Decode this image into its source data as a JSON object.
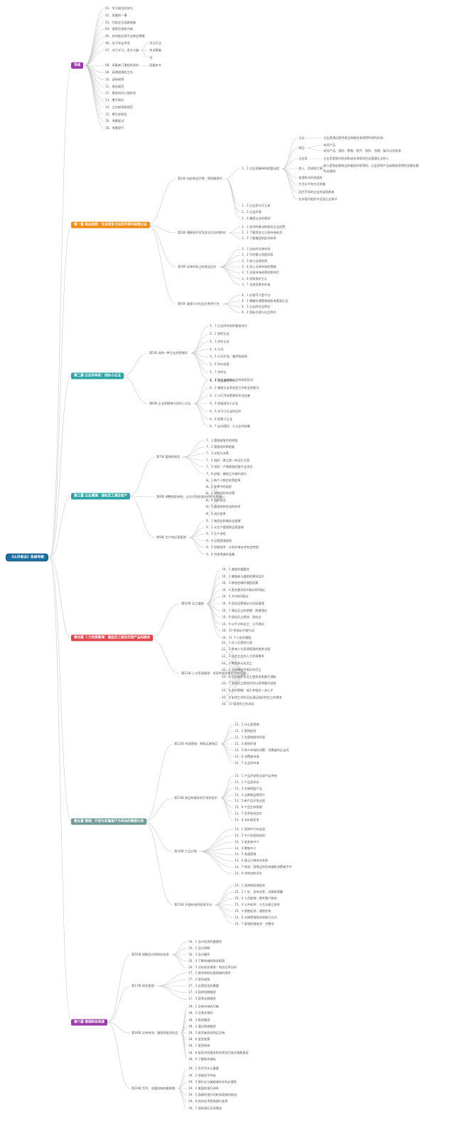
{
  "root": "《认识商业》思维导图",
  "colors": {
    "purple": "#9b3aa8",
    "orange": "#f28c10",
    "teal": "#2aa3a3",
    "red": "#e0464c",
    "gray_teal": "#6f9a98",
    "edge": "#c8c8c8"
  },
  "parts": [
    {
      "id": "intro",
      "title": "导读",
      "color": "purple",
      "items": [
        {
          "label": "01、学习成功的技巧"
        },
        {
          "label": "02、发掘的一课"
        },
        {
          "label": "03、为职业生涯做准备"
        },
        {
          "label": "04、搜索信息和大纲"
        },
        {
          "label": "05、综合能运用专业商业策略"
        },
        {
          "label": "06、学习专业术语"
        },
        {
          "label": "07、对于学习，多方兴趣",
          "children": [
            {
              "label": "学习方法"
            },
            {
              "label": "考试策略"
            },
            {
              "label": "试"
            }
          ]
        },
        {
          "label": "08、采集本门课程的资料",
          "children": [
            {
              "label": "采集本书"
            }
          ]
        },
        {
          "label": "09、获得理想的工作"
        },
        {
          "label": "10、读新闻等"
        },
        {
          "label": "11、报告规范"
        },
        {
          "label": "12、服务良好心理状态"
        },
        {
          "label": "13、撰写简历"
        },
        {
          "label": "14、工作收获和规范"
        },
        {
          "label": "15、撰写求职信"
        },
        {
          "label": "16、准备面试"
        },
        {
          "label": "18、准备辞行"
        }
      ]
    },
    {
      "id": "p1",
      "title": "第一篇 商业趋势：在全球多元化的环境中经营企业",
      "color": "orange",
      "chapters": [
        {
          "label": "第1章 动态商业环境：简把握获利",
          "items": [
            {
              "label": "1、1 企业家精神和财富创造",
              "children": [
                {
                  "label": "企业",
                  "children": [
                    {
                      "label": "企业是通过提供商品和服务来获得利润的实体"
                    }
                  ]
                },
                {
                  "label": "商品",
                  "children": [
                    {
                      "label": "有形产品"
                    },
                    {
                      "label": "无形产品：服务、教育、医疗、保险、金融、娱乐以及旅游"
                    }
                  ]
                },
                {
                  "label": "企业家",
                  "children": [
                    {
                      "label": "企业家是指为利润和成长承担风险去管理企业的人"
                    }
                  ]
                },
                {
                  "label": "收入、利润和亏损",
                  "children": [
                    {
                      "label": "收入是指出售商品和服务所获得的，企业获得产品或服务获得的金额总额"
                    },
                    {
                      "label": "利润透明"
                    }
                  ]
                },
                {
                  "label": "私营和非利润组织"
                },
                {
                  "label": "生活水平和生活质量"
                },
                {
                  "label": "回应不同的企业利益相关者"
                },
                {
                  "label": "在非盈利组织中运用企业知识"
                }
              ]
            },
            {
              "label": "1、2 企业家与打工者"
            },
            {
              "label": "1、3 企业环境"
            },
            {
              "label": "1、4 美国企业的演进"
            }
          ]
        },
        {
          "label": "第2章 理解经济学及其对企业的影响",
          "items": [
            {
              "label": "2、1 经济的推动和驱动企业经营"
            },
            {
              "label": "2、2 了解资本主义和市场经济"
            },
            {
              "label": "2、3 了解美国的经济体系"
            }
          ]
        },
        {
          "label": "第3章 全球市场上的商业运作",
          "items": [
            {
              "label": "3、1 动态的全球市场"
            },
            {
              "label": "3、2 为何要与他国交易"
            },
            {
              "label": "3、3 参与全球贸易"
            },
            {
              "label": "3、4 进入全球市场的策略"
            },
            {
              "label": "3、5 全球市场经营的影响力"
            },
            {
              "label": "3、6 贸易保护主义"
            },
            {
              "label": "3、7 全球贸易的未来"
            }
          ]
        },
        {
          "label": "第4章 道德与对社会负责的行为",
          "items": [
            {
              "label": "4、1 伦理不只是守法"
            },
            {
              "label": "4、2 掌握伦理管理指标来提高企业"
            },
            {
              "label": "4、3 企业的社会责任"
            },
            {
              "label": "4、4 国际伦理与社会责任"
            }
          ]
        }
      ]
    },
    {
      "id": "p2",
      "title": "第二篇 企业所有权：创办小企业",
      "color": "teal",
      "chapters": [
        {
          "label": "第5章 选择一种企业经营模式",
          "items": [
            {
              "label": "5、1 企业所有权的基本形式"
            },
            {
              "label": "5、2 独资企业"
            },
            {
              "label": "5、3 合伙企业"
            },
            {
              "label": "5、4 公司"
            },
            {
              "label": "5、5 公司扩张：兼并和收购"
            },
            {
              "label": "5、6 特许经营"
            },
            {
              "label": "5、7 合作社"
            },
            {
              "label": "5、8 你适合哪种企业所有权形式"
            }
          ]
        },
        {
          "label": "第6章 企业家精神与创办小企业",
          "items": [
            {
              "label": "6、1 创业者的时代"
            },
            {
              "label": "6、2 美国企业家创造工作机会的能力"
            },
            {
              "label": "6、3 人们为何愿意担任创业者"
            },
            {
              "label": "6、4 发展创办小企业"
            },
            {
              "label": "6、5 学习小企业的运作"
            },
            {
              "label": "6、6 经营小企业"
            },
            {
              "label": "6、7 走向国际：小企业的前景"
            }
          ]
        }
      ]
    },
    {
      "id": "p3",
      "title": "第三篇 企业管理：授权员工满足客户",
      "color": "teal",
      "chapters": [
        {
          "label": "第7章 管理和领导",
          "items": [
            {
              "label": "7、1 管理者角色的改变"
            },
            {
              "label": "7、2 管理的四种职能"
            },
            {
              "label": "7、3 计划与决策"
            },
            {
              "label": "7、4 组织：建立统一的运行方案"
            },
            {
              "label": "7、5 领导：严格管理而要专业领导"
            },
            {
              "label": "7、6 控制：确保工作顺利进行"
            }
          ]
        },
        {
          "label": "第8章 调整组织结构，以应对急剧变化的商业挑战",
          "items": [
            {
              "label": "8、1 每个人都会经营变革"
            },
            {
              "label": "8、2 变革中的组织"
            },
            {
              "label": "8、3 调和组织的决策"
            },
            {
              "label": "8、4 组织类型"
            },
            {
              "label": "8、5 管理两种交流和关系"
            },
            {
              "label": "8、6 适应变革"
            }
          ]
        },
        {
          "label": "第9章 生产和运营管理",
          "items": [
            {
              "label": "9、1 制造业和服务业展望"
            },
            {
              "label": "9、2 从生产管理到运营管理"
            },
            {
              "label": "9、3 生产流程"
            },
            {
              "label": "9、4 运营管理规划"
            },
            {
              "label": "9、5 控制程序：计划评审技术和甘特图"
            },
            {
              "label": "9、6 为效率做好准备"
            }
          ]
        }
      ]
    },
    {
      "id": "p4",
      "title": "第四篇 人力资源管理：激励员工提供优质产品和服务",
      "color": "red",
      "chapters": [
        {
          "label": "第10章 员工激励",
          "items": [
            {
              "label": "10、1 激励的重要性"
            },
            {
              "label": "10、2 激励者与激励的需求层次"
            },
            {
              "label": "10、3 赫兹伯格的激励因素"
            },
            {
              "label": "10、4 麦克雷戈的X理论和Y理论"
            },
            {
              "label": "10、5 大内的Z理论"
            },
            {
              "label": "10、6 目标设置理论与目标管理"
            },
            {
              "label": "10、7 满足员工的期望：期望理论"
            },
            {
              "label": "10、8 强化员工绩效：强化论"
            },
            {
              "label": "10、9 公平对待员工：公平理论"
            },
            {
              "label": "10、10 将理论付诸行动"
            },
            {
              "label": "10、11 个人化的激励"
            }
          ]
        },
        {
          "label": "第11章 人力资源管理：发现并留住最优秀的员工",
          "items": [
            {
              "label": "11、1 在人员规划方面"
            },
            {
              "label": "11、2 影响人力资源管理的相关法规"
            },
            {
              "label": "11、3 决定企业的人力资源需求"
            },
            {
              "label": "11、4 聘用多元化员工"
            },
            {
              "label": "11、5 选拔最适合岗位的员工"
            },
            {
              "label": "11、6 培训和开发员工使其发挥最大潜能"
            },
            {
              "label": "11、7 采用员工绩效评估以获得最大成效"
            },
            {
              "label": "11、8 支付薪酬：吸引并留住一流人才"
            },
            {
              "label": "11、9 安排工作时间以满足组织和员工的需求"
            },
            {
              "label": "11、10 管理员工的流动"
            }
          ]
        }
      ]
    },
    {
      "id": "p5",
      "title": "第五篇 营销：开发与实施客户为导向的营销计划",
      "color": "gray_teal",
      "chapters": [
        {
          "label": "第12章 市场营销：帮助买者购买",
          "items": [
            {
              "label": "12、1 什么是营销"
            },
            {
              "label": "12、2 营销组合"
            },
            {
              "label": "12、3 为营销提供环境"
            },
            {
              "label": "12、4 营销环境"
            },
            {
              "label": "12、5 两个市场的消费：消费者和企业间"
            },
            {
              "label": "12、6 消费者市场"
            },
            {
              "label": "12、7 企业间市场"
            }
          ]
        },
        {
          "label": "第13章 商品和服务的开发和定价",
          "items": [
            {
              "label": "13、1 产品开发和全部产品供给"
            },
            {
              "label": "13、2 产品差异化"
            },
            {
              "label": "13、3 包装改变产品"
            },
            {
              "label": "13、4 品牌和品牌资产"
            },
            {
              "label": "13、5 新产品开发过程"
            },
            {
              "label": "13、6 产品生命周期"
            },
            {
              "label": "13、7 竞争性的定价"
            },
            {
              "label": "13、8 非价格竞争"
            }
          ]
        },
        {
          "label": "第14章 产品分销",
          "items": [
            {
              "label": "14、1 营销中介的出现"
            },
            {
              "label": "14、2 中介创造的效用"
            },
            {
              "label": "14、3 批发商中介"
            },
            {
              "label": "14、4 零售中介"
            },
            {
              "label": "14、5 高速营销"
            },
            {
              "label": "14、6 建立分销合作关系"
            },
            {
              "label": "14、7 物流：获得品到货单据和消费者手中"
            },
            {
              "label": "14、8 对物流的评价"
            }
          ]
        },
        {
          "label": "第15章 开展有效的促销活动",
          "items": [
            {
              "label": "15、1 促销和促销组合"
            },
            {
              "label": "15、2 广告：发布信息、进展和提醒"
            },
            {
              "label": "15、3 人员推销：提供客户服务"
            },
            {
              "label": "15、4 公共关系：与大众建立关系"
            },
            {
              "label": "15、5 销售促进：理想交易"
            },
            {
              "label": "15、6 口碑营销和其他新兴方式"
            },
            {
              "label": "15、7 管理促销组合：大整合"
            }
          ]
        }
      ]
    },
    {
      "id": "p6",
      "title": "第六篇 管理财务资源",
      "color": "purple",
      "chapters": [
        {
          "label": "第16章 理解会计和财务信息",
          "items": [
            {
              "label": "16、1 会计信息的重要性"
            },
            {
              "label": "16、2 会计周期"
            },
            {
              "label": "16、3 会计循环"
            },
            {
              "label": "16、4 了解关键的财务报表"
            },
            {
              "label": "16、5 分析财务报表：财务比率分析"
            }
          ]
        },
        {
          "label": "第17章 财务管理",
          "items": [
            {
              "label": "17、1 财务和财务管理者的角色"
            },
            {
              "label": "17、2 财务规划"
            },
            {
              "label": "17、3 运营资金的需要"
            },
            {
              "label": "17、4 获得短期融资"
            },
            {
              "label": "17、5 获得长期融资"
            }
          ]
        },
        {
          "label": "第18章 证券市场：融资和投资机会",
          "items": [
            {
              "label": "18、1 证券市场的功能"
            },
            {
              "label": "18、2 证券交易所"
            },
            {
              "label": "18、3 股权融资"
            },
            {
              "label": "18、4 通过债券融资"
            },
            {
              "label": "18、5 投资者如何购买证券"
            },
            {
              "label": "18、6 投资股票"
            },
            {
              "label": "18、7 投资债券"
            },
            {
              "label": "18、8 投资共同基金和交易型开放式指数基金"
            },
            {
              "label": "18、9 了解股市指标"
            }
          ]
        },
        {
          "label": "第19章 货币、金融机构和美联储",
          "items": [
            {
              "label": "19、1 货币为什么重要"
            },
            {
              "label": "19、2 控制货币供给"
            },
            {
              "label": "19、3 银行史与美联储存在的必要性"
            },
            {
              "label": "19、4 美国的银行体系"
            },
            {
              "label": "19、5 面临的银行的机构面临的挑战"
            },
            {
              "label": "19、6 科技技术面临银行变革"
            },
            {
              "label": "19、7 国际银行及其服务"
            }
          ]
        }
      ]
    }
  ]
}
